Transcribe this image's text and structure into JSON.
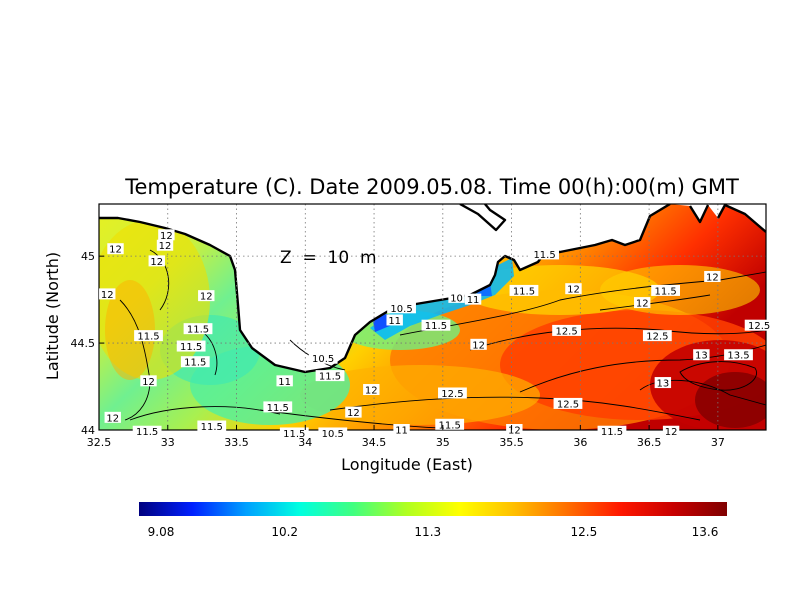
{
  "chart_data": {
    "type": "heatmap",
    "title": "Temperature (C). Date 2009.05.08. Time 00(h):00(m) GMT",
    "annotation": "Z  =  10  m",
    "xlabel": "Longitude (East)",
    "ylabel": "Latitude (North)",
    "xlim": [
      32.5,
      37.35
    ],
    "ylim": [
      44.0,
      45.3
    ],
    "x_ticks": [
      "32.5",
      "33",
      "33.5",
      "34",
      "34.5",
      "35",
      "35.5",
      "36",
      "36.5",
      "37"
    ],
    "y_ticks": [
      "44",
      "44.5",
      "45"
    ],
    "grid": true,
    "colorbar": {
      "ticks": [
        "9.08",
        "10.2",
        "11.3",
        "12.5",
        "13.6"
      ],
      "min": 9.08,
      "max": 13.6,
      "colors": [
        "#00007f",
        "#0020ff",
        "#00a0ff",
        "#00ffe0",
        "#40ff80",
        "#b0ff20",
        "#ffff00",
        "#ffc000",
        "#ff7000",
        "#ff1800",
        "#c80000",
        "#7f0000"
      ]
    },
    "contour_labels": [
      {
        "text": "12",
        "x": 32.62,
        "y": 45.04
      },
      {
        "text": "12",
        "x": 32.99,
        "y": 45.12
      },
      {
        "text": "12",
        "x": 32.98,
        "y": 45.06
      },
      {
        "text": "12",
        "x": 32.92,
        "y": 44.97
      },
      {
        "text": "12",
        "x": 32.56,
        "y": 44.78
      },
      {
        "text": "12",
        "x": 33.28,
        "y": 44.77
      },
      {
        "text": "11.5",
        "x": 33.22,
        "y": 44.58
      },
      {
        "text": "11.5",
        "x": 32.86,
        "y": 44.54
      },
      {
        "text": "11.5",
        "x": 33.17,
        "y": 44.48
      },
      {
        "text": "11.5",
        "x": 33.2,
        "y": 44.39
      },
      {
        "text": "12",
        "x": 32.86,
        "y": 44.28
      },
      {
        "text": "12",
        "x": 32.6,
        "y": 44.07
      },
      {
        "text": "11.5",
        "x": 32.85,
        "y": 43.99
      },
      {
        "text": "11.5",
        "x": 33.32,
        "y": 44.02
      },
      {
        "text": "11.5",
        "x": 33.8,
        "y": 44.13
      },
      {
        "text": "11.5",
        "x": 33.92,
        "y": 43.98
      },
      {
        "text": "10.5",
        "x": 34.2,
        "y": 43.98
      },
      {
        "text": "11",
        "x": 34.7,
        "y": 44.0
      },
      {
        "text": "11",
        "x": 33.85,
        "y": 44.28
      },
      {
        "text": "11.5",
        "x": 34.18,
        "y": 44.31
      },
      {
        "text": "10.5",
        "x": 34.13,
        "y": 44.41
      },
      {
        "text": "12",
        "x": 34.48,
        "y": 44.23
      },
      {
        "text": "12",
        "x": 34.35,
        "y": 44.1
      },
      {
        "text": "11",
        "x": 34.65,
        "y": 44.63
      },
      {
        "text": "10.5",
        "x": 34.7,
        "y": 44.7
      },
      {
        "text": "11.5",
        "x": 34.95,
        "y": 44.6
      },
      {
        "text": "10",
        "x": 35.1,
        "y": 44.76
      },
      {
        "text": "11",
        "x": 35.22,
        "y": 44.75
      },
      {
        "text": "12",
        "x": 35.26,
        "y": 44.49
      },
      {
        "text": "11.5",
        "x": 35.59,
        "y": 44.8
      },
      {
        "text": "11.5",
        "x": 35.74,
        "y": 45.01
      },
      {
        "text": "12",
        "x": 35.95,
        "y": 44.81
      },
      {
        "text": "12.5",
        "x": 35.9,
        "y": 44.57
      },
      {
        "text": "12.5",
        "x": 35.07,
        "y": 44.21
      },
      {
        "text": "12.5",
        "x": 35.91,
        "y": 44.15
      },
      {
        "text": "12",
        "x": 35.52,
        "y": 44.0
      },
      {
        "text": "11.5",
        "x": 35.05,
        "y": 44.03
      },
      {
        "text": "11.5",
        "x": 36.23,
        "y": 43.99
      },
      {
        "text": "12",
        "x": 36.45,
        "y": 44.73
      },
      {
        "text": "11.5",
        "x": 36.62,
        "y": 44.8
      },
      {
        "text": "12",
        "x": 36.96,
        "y": 44.88
      },
      {
        "text": "12.5",
        "x": 36.56,
        "y": 44.54
      },
      {
        "text": "13",
        "x": 36.88,
        "y": 44.43
      },
      {
        "text": "13.5",
        "x": 37.15,
        "y": 44.43
      },
      {
        "text": "13",
        "x": 36.6,
        "y": 44.27
      },
      {
        "text": "12",
        "x": 36.66,
        "y": 43.99
      },
      {
        "text": "12.5",
        "x": 37.3,
        "y": 44.6
      }
    ]
  }
}
